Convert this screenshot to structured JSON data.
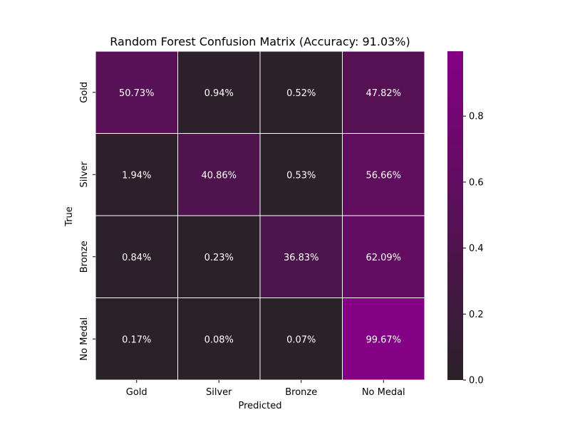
{
  "chart_data": {
    "type": "heatmap",
    "title": "Random Forest Confusion Matrix (Accuracy: 91.03%)",
    "xlabel": "Predicted",
    "ylabel": "True",
    "x_categories": [
      "Gold",
      "Silver",
      "Bronze",
      "No Medal"
    ],
    "y_categories": [
      "Gold",
      "Silver",
      "Bronze",
      "No Medal"
    ],
    "values": [
      [
        0.5073,
        0.0094,
        0.0052,
        0.4782
      ],
      [
        0.0194,
        0.4086,
        0.0053,
        0.5666
      ],
      [
        0.0084,
        0.0023,
        0.3683,
        0.6209
      ],
      [
        0.0017,
        0.0008,
        0.0007,
        0.9967
      ]
    ],
    "cell_labels": [
      [
        "50.73%",
        "0.94%",
        "0.52%",
        "47.82%"
      ],
      [
        "1.94%",
        "40.86%",
        "0.53%",
        "56.66%"
      ],
      [
        "0.84%",
        "0.23%",
        "36.83%",
        "62.09%"
      ],
      [
        "0.17%",
        "0.08%",
        "0.07%",
        "99.67%"
      ]
    ],
    "colorbar": {
      "range": [
        0.0,
        0.9967
      ],
      "ticks": [
        0.0,
        0.2,
        0.4,
        0.6,
        0.8
      ],
      "tick_labels": [
        "0.0",
        "0.2",
        "0.4",
        "0.6",
        "0.8"
      ]
    },
    "colors": {
      "low": "#2b2129",
      "high": "#840084",
      "cell_border": "#ffffff",
      "text": "#ffffff",
      "axis_text": "#000000"
    },
    "grid": false
  }
}
